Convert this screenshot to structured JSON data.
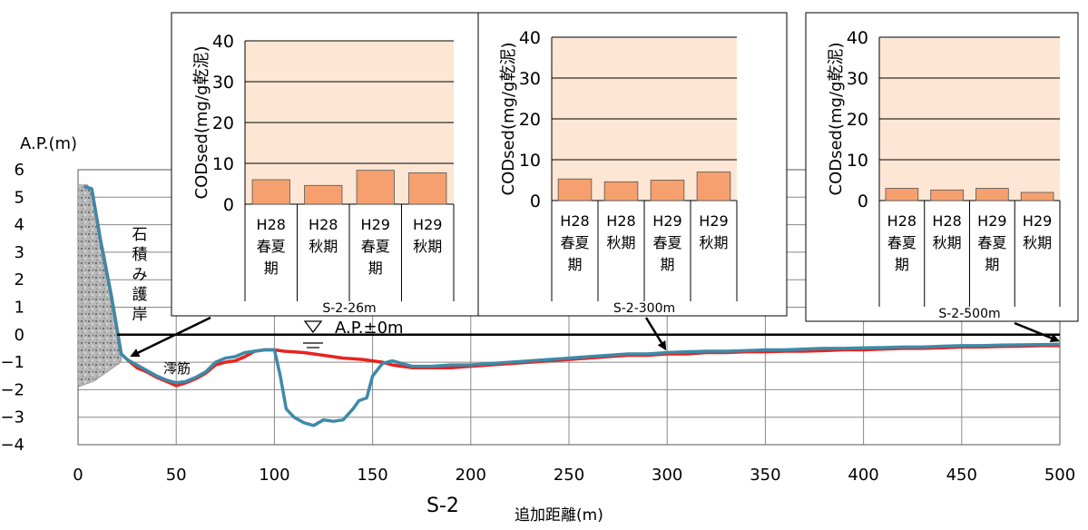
{
  "chart_data": [
    {
      "type": "line",
      "title": "",
      "xlabel": "追加距離(m)",
      "ylabel": "A.P.(m)",
      "section_label": "S-2",
      "xlim": [
        0,
        500
      ],
      "ylim": [
        -4,
        6
      ],
      "x_ticks": [
        0,
        50,
        100,
        150,
        200,
        250,
        300,
        350,
        400,
        450,
        500
      ],
      "y_ticks": [
        6,
        5,
        4,
        3,
        2,
        1,
        0,
        -1,
        -2,
        -3,
        -4
      ],
      "grid": true,
      "colors": {
        "red_profile": "#e8231f",
        "blue_profile": "#3d8aa8",
        "revetment": "#9a9a9a"
      },
      "series": [
        {
          "name": "",
          "color": "#e8231f",
          "points": [
            [
              3,
              5.4
            ],
            [
              7,
              5.3
            ],
            [
              12,
              3.2
            ],
            [
              17,
              1.4
            ],
            [
              22,
              -0.7
            ],
            [
              25,
              -0.9
            ],
            [
              30,
              -1.2
            ],
            [
              35,
              -1.35
            ],
            [
              40,
              -1.55
            ],
            [
              45,
              -1.7
            ],
            [
              50,
              -1.85
            ],
            [
              55,
              -1.75
            ],
            [
              60,
              -1.6
            ],
            [
              65,
              -1.4
            ],
            [
              70,
              -1.1
            ],
            [
              75,
              -1.0
            ],
            [
              80,
              -0.95
            ],
            [
              85,
              -0.8
            ],
            [
              90,
              -0.6
            ],
            [
              95,
              -0.55
            ],
            [
              100,
              -0.55
            ],
            [
              105,
              -0.6
            ],
            [
              115,
              -0.65
            ],
            [
              125,
              -0.75
            ],
            [
              135,
              -0.85
            ],
            [
              145,
              -0.9
            ],
            [
              150,
              -0.95
            ],
            [
              155,
              -1.0
            ],
            [
              160,
              -1.1
            ],
            [
              165,
              -1.15
            ],
            [
              170,
              -1.2
            ],
            [
              180,
              -1.2
            ],
            [
              190,
              -1.2
            ],
            [
              200,
              -1.15
            ],
            [
              210,
              -1.1
            ],
            [
              220,
              -1.05
            ],
            [
              230,
              -1.0
            ],
            [
              240,
              -0.95
            ],
            [
              250,
              -0.9
            ],
            [
              260,
              -0.85
            ],
            [
              270,
              -0.8
            ],
            [
              280,
              -0.75
            ],
            [
              290,
              -0.75
            ],
            [
              300,
              -0.7
            ],
            [
              310,
              -0.7
            ],
            [
              320,
              -0.65
            ],
            [
              330,
              -0.65
            ],
            [
              340,
              -0.62
            ],
            [
              350,
              -0.62
            ],
            [
              360,
              -0.6
            ],
            [
              370,
              -0.6
            ],
            [
              380,
              -0.58
            ],
            [
              390,
              -0.55
            ],
            [
              400,
              -0.55
            ],
            [
              410,
              -0.52
            ],
            [
              420,
              -0.5
            ],
            [
              430,
              -0.5
            ],
            [
              440,
              -0.48
            ],
            [
              450,
              -0.45
            ],
            [
              460,
              -0.45
            ],
            [
              470,
              -0.43
            ],
            [
              480,
              -0.42
            ],
            [
              490,
              -0.4
            ],
            [
              500,
              -0.4
            ]
          ]
        },
        {
          "name": "",
          "color": "#3d8aa8",
          "points": [
            [
              3,
              5.4
            ],
            [
              7,
              5.3
            ],
            [
              12,
              3.2
            ],
            [
              17,
              1.4
            ],
            [
              22,
              -0.7
            ],
            [
              25,
              -0.9
            ],
            [
              30,
              -1.1
            ],
            [
              35,
              -1.3
            ],
            [
              40,
              -1.5
            ],
            [
              45,
              -1.65
            ],
            [
              50,
              -1.75
            ],
            [
              55,
              -1.7
            ],
            [
              60,
              -1.55
            ],
            [
              65,
              -1.35
            ],
            [
              70,
              -1.0
            ],
            [
              75,
              -0.85
            ],
            [
              80,
              -0.8
            ],
            [
              85,
              -0.65
            ],
            [
              90,
              -0.6
            ],
            [
              95,
              -0.55
            ],
            [
              100,
              -0.55
            ],
            [
              103,
              -1.5
            ],
            [
              106,
              -2.7
            ],
            [
              110,
              -3.0
            ],
            [
              115,
              -3.2
            ],
            [
              120,
              -3.3
            ],
            [
              125,
              -3.1
            ],
            [
              130,
              -3.15
            ],
            [
              135,
              -3.1
            ],
            [
              140,
              -2.7
            ],
            [
              143,
              -2.4
            ],
            [
              147,
              -2.3
            ],
            [
              150,
              -1.5
            ],
            [
              155,
              -1.05
            ],
            [
              160,
              -0.95
            ],
            [
              165,
              -1.05
            ],
            [
              170,
              -1.15
            ],
            [
              180,
              -1.15
            ],
            [
              190,
              -1.1
            ],
            [
              200,
              -1.1
            ],
            [
              210,
              -1.05
            ],
            [
              220,
              -1.0
            ],
            [
              230,
              -0.95
            ],
            [
              240,
              -0.9
            ],
            [
              250,
              -0.85
            ],
            [
              260,
              -0.8
            ],
            [
              270,
              -0.75
            ],
            [
              280,
              -0.7
            ],
            [
              290,
              -0.7
            ],
            [
              300,
              -0.65
            ],
            [
              310,
              -0.62
            ],
            [
              320,
              -0.6
            ],
            [
              330,
              -0.6
            ],
            [
              340,
              -0.58
            ],
            [
              350,
              -0.55
            ],
            [
              360,
              -0.55
            ],
            [
              370,
              -0.52
            ],
            [
              380,
              -0.5
            ],
            [
              390,
              -0.5
            ],
            [
              400,
              -0.48
            ],
            [
              410,
              -0.47
            ],
            [
              420,
              -0.45
            ],
            [
              430,
              -0.45
            ],
            [
              440,
              -0.42
            ],
            [
              450,
              -0.4
            ],
            [
              460,
              -0.4
            ],
            [
              470,
              -0.38
            ],
            [
              480,
              -0.37
            ],
            [
              490,
              -0.36
            ],
            [
              500,
              -0.35
            ]
          ]
        }
      ],
      "annotations": {
        "water_level_label": "A.P.±0m",
        "water_level_value": 0,
        "revetment_label": [
          "石",
          "積",
          "み",
          "護",
          "岸"
        ],
        "channel_label": "澪筋"
      }
    },
    {
      "type": "bar",
      "station": "S-2-26m",
      "ylabel": "CODsed(mg/g乾泥)",
      "ylim": [
        0,
        40
      ],
      "y_ticks": [
        0,
        10,
        20,
        30,
        40
      ],
      "bar_color": "#f5a06e",
      "bg_color": "#fde6d4",
      "categories": [
        [
          "H28",
          "春夏",
          "期"
        ],
        [
          "H28",
          "秋期"
        ],
        [
          "H29",
          "春夏",
          "期"
        ],
        [
          "H29",
          "秋期"
        ]
      ],
      "values": [
        6.0,
        4.6,
        8.3,
        7.7
      ],
      "pointer_to_x": 25
    },
    {
      "type": "bar",
      "station": "S-2-300m",
      "ylabel": "CODsed(mg/g乾泥)",
      "ylim": [
        0,
        40
      ],
      "y_ticks": [
        0,
        10,
        20,
        30,
        40
      ],
      "bar_color": "#f5a06e",
      "bg_color": "#fde6d4",
      "categories": [
        [
          "H28",
          "春夏",
          "期"
        ],
        [
          "H28",
          "秋期"
        ],
        [
          "H29",
          "春夏",
          "期"
        ],
        [
          "H29",
          "秋期"
        ]
      ],
      "values": [
        5.3,
        4.6,
        5.0,
        7.0
      ],
      "pointer_to_x": 300
    },
    {
      "type": "bar",
      "station": "S-2-500m",
      "ylabel": "CODsed(mg/g乾泥)",
      "ylim": [
        0,
        40
      ],
      "y_ticks": [
        0,
        10,
        20,
        30,
        40
      ],
      "bar_color": "#f5a06e",
      "bg_color": "#fde6d4",
      "categories": [
        [
          "H28",
          "春夏",
          "期"
        ],
        [
          "H28",
          "秋期"
        ],
        [
          "H29",
          "春夏",
          "期"
        ],
        [
          "H29",
          "秋期"
        ]
      ],
      "values": [
        3.0,
        2.6,
        3.0,
        2.0
      ],
      "pointer_to_x": 500
    }
  ]
}
